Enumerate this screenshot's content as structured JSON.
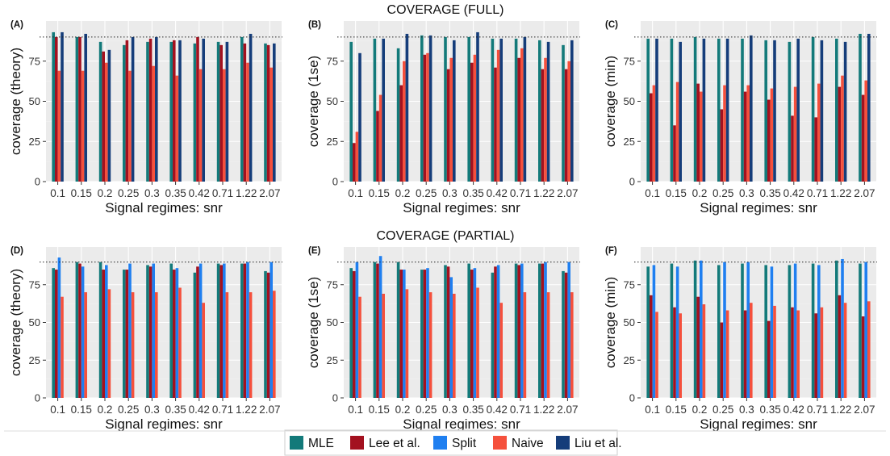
{
  "sections": [
    {
      "title": "COVERAGE (FULL)",
      "panels": [
        0,
        1,
        2
      ]
    },
    {
      "title": "COVERAGE (PARTIAL)",
      "panels": [
        3,
        4,
        5
      ]
    }
  ],
  "legend": {
    "placement": "bottom",
    "items": [
      {
        "name": "MLE",
        "color": "#137a7a"
      },
      {
        "name": "Lee et al.",
        "color": "#a3111f"
      },
      {
        "name": "Split",
        "color": "#1f7ff0"
      },
      {
        "name": "Naive",
        "color": "#f5503c"
      },
      {
        "name": "Liu et al.",
        "color": "#153d7a"
      }
    ]
  },
  "chart_data": [
    {
      "type": "bar",
      "tag": "(A)",
      "title": "",
      "xlabel": "Signal regimes: snr",
      "ylabel": "coverage (theory)",
      "categories": [
        "0.1",
        "0.15",
        "0.2",
        "0.25",
        "0.3",
        "0.35",
        "0.42",
        "0.71",
        "1.22",
        "2.07"
      ],
      "ylim": [
        0,
        100
      ],
      "yticks": [
        0,
        25,
        50,
        75
      ],
      "reference_line": 90,
      "grid": true,
      "series": [
        {
          "name": "MLE",
          "values": [
            93,
            90,
            87,
            85,
            87,
            87,
            86,
            87,
            90,
            86
          ]
        },
        {
          "name": "Lee et al.",
          "values": [
            90,
            90,
            81,
            88,
            89,
            88,
            90,
            85,
            86,
            85
          ]
        },
        {
          "name": "Naive",
          "values": [
            69,
            69,
            74,
            69,
            72,
            66,
            70,
            70,
            74,
            71
          ]
        },
        {
          "name": "Liu et al.",
          "values": [
            93,
            92,
            82,
            90,
            90,
            88,
            89,
            87,
            92,
            86
          ]
        }
      ]
    },
    {
      "type": "bar",
      "tag": "(B)",
      "title": "",
      "xlabel": "Signal regimes: snr",
      "ylabel": "coverage (1se)",
      "categories": [
        "0.1",
        "0.15",
        "0.2",
        "0.25",
        "0.3",
        "0.35",
        "0.42",
        "0.71",
        "1.22",
        "2.07"
      ],
      "ylim": [
        0,
        100
      ],
      "yticks": [
        0,
        25,
        50,
        75
      ],
      "reference_line": 90,
      "grid": true,
      "series": [
        {
          "name": "MLE",
          "values": [
            87,
            89,
            83,
            91,
            90,
            90,
            89,
            89,
            88,
            85
          ]
        },
        {
          "name": "Lee et al.",
          "values": [
            24,
            44,
            60,
            79,
            70,
            74,
            71,
            77,
            70,
            70
          ]
        },
        {
          "name": "Naive",
          "values": [
            31,
            54,
            75,
            80,
            77,
            79,
            82,
            83,
            77,
            75
          ]
        },
        {
          "name": "Liu et al.",
          "values": [
            80,
            89,
            92,
            91,
            88,
            93,
            89,
            90,
            87,
            88
          ]
        }
      ]
    },
    {
      "type": "bar",
      "tag": "(C)",
      "title": "",
      "xlabel": "Signal regimes: snr",
      "ylabel": "coverage (min)",
      "categories": [
        "0.1",
        "0.15",
        "0.2",
        "0.25",
        "0.3",
        "0.35",
        "0.42",
        "0.71",
        "1.22",
        "2.07"
      ],
      "ylim": [
        0,
        100
      ],
      "yticks": [
        0,
        25,
        50,
        75
      ],
      "reference_line": 90,
      "grid": true,
      "series": [
        {
          "name": "MLE",
          "values": [
            89,
            89,
            90,
            89,
            89,
            88,
            87,
            90,
            89,
            92
          ]
        },
        {
          "name": "Lee et al.",
          "values": [
            55,
            35,
            61,
            45,
            56,
            51,
            41,
            40,
            59,
            54
          ]
        },
        {
          "name": "Naive",
          "values": [
            60,
            62,
            56,
            60,
            60,
            58,
            59,
            61,
            66,
            63
          ]
        },
        {
          "name": "Liu et al.",
          "values": [
            89,
            87,
            89,
            89,
            91,
            88,
            89,
            88,
            87,
            92
          ]
        }
      ]
    },
    {
      "type": "bar",
      "tag": "(D)",
      "title": "",
      "xlabel": "Signal regimes: snr",
      "ylabel": "coverage (theory)",
      "categories": [
        "0.1",
        "0.15",
        "0.2",
        "0.25",
        "0.3",
        "0.35",
        "0.42",
        "0.71",
        "1.22",
        "2.07"
      ],
      "ylim": [
        0,
        100
      ],
      "yticks": [
        0,
        25,
        50,
        75
      ],
      "reference_line": 90,
      "grid": true,
      "series": [
        {
          "name": "MLE",
          "values": [
            86,
            90,
            90,
            85,
            88,
            89,
            83,
            89,
            89,
            84
          ]
        },
        {
          "name": "Lee et al.",
          "values": [
            85,
            89,
            85,
            85,
            87,
            85,
            87,
            88,
            89,
            83
          ]
        },
        {
          "name": "Split",
          "values": [
            93,
            87,
            88,
            89,
            89,
            86,
            89,
            89,
            90,
            90
          ]
        },
        {
          "name": "Naive",
          "values": [
            67,
            70,
            72,
            70,
            70,
            73,
            63,
            70,
            70,
            71
          ]
        }
      ]
    },
    {
      "type": "bar",
      "tag": "(E)",
      "title": "",
      "xlabel": "Signal regimes: snr",
      "ylabel": "coverage (1se)",
      "categories": [
        "0.1",
        "0.15",
        "0.2",
        "0.25",
        "0.3",
        "0.35",
        "0.42",
        "0.71",
        "1.22",
        "2.07"
      ],
      "ylim": [
        0,
        100
      ],
      "yticks": [
        0,
        25,
        50,
        75
      ],
      "reference_line": 90,
      "grid": true,
      "series": [
        {
          "name": "MLE",
          "values": [
            86,
            90,
            90,
            85,
            88,
            89,
            83,
            89,
            89,
            84
          ]
        },
        {
          "name": "Lee et al.",
          "values": [
            84,
            89,
            85,
            85,
            87,
            85,
            87,
            88,
            89,
            83
          ]
        },
        {
          "name": "Split",
          "values": [
            90,
            94,
            85,
            86,
            80,
            86,
            88,
            89,
            90,
            90
          ]
        },
        {
          "name": "Naive",
          "values": [
            67,
            69,
            72,
            70,
            69,
            73,
            63,
            70,
            70,
            70
          ]
        }
      ]
    },
    {
      "type": "bar",
      "tag": "(F)",
      "title": "",
      "xlabel": "Signal regimes: snr",
      "ylabel": "coverage (min)",
      "categories": [
        "0.1",
        "0.15",
        "0.2",
        "0.25",
        "0.3",
        "0.35",
        "0.42",
        "0.71",
        "1.22",
        "2.07"
      ],
      "ylim": [
        0,
        100
      ],
      "yticks": [
        0,
        25,
        50,
        75
      ],
      "reference_line": 90,
      "grid": true,
      "series": [
        {
          "name": "MLE",
          "values": [
            87,
            89,
            91,
            88,
            89,
            88,
            88,
            89,
            91,
            89
          ]
        },
        {
          "name": "Lee et al.",
          "values": [
            68,
            60,
            67,
            50,
            58,
            51,
            60,
            56,
            68,
            54
          ]
        },
        {
          "name": "Split",
          "values": [
            88,
            87,
            91,
            90,
            90,
            87,
            89,
            88,
            92,
            90
          ]
        },
        {
          "name": "Naive",
          "values": [
            57,
            56,
            62,
            58,
            63,
            61,
            58,
            60,
            63,
            64
          ]
        }
      ]
    }
  ]
}
